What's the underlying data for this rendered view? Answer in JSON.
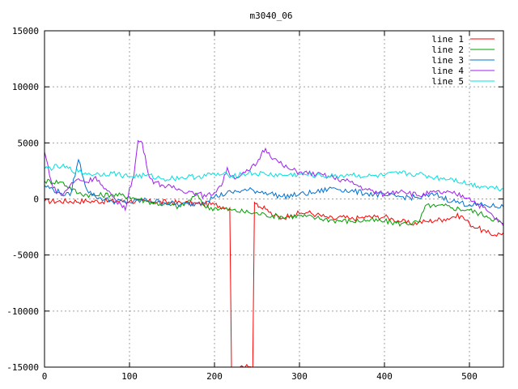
{
  "chart_data": {
    "type": "line",
    "title": "m3040_06",
    "xlabel": "",
    "ylabel": "",
    "xlim": [
      0,
      540
    ],
    "ylim": [
      -15000,
      15000
    ],
    "xticks": [
      0,
      100,
      200,
      300,
      400,
      500
    ],
    "yticks": [
      -15000,
      -10000,
      -5000,
      0,
      5000,
      10000,
      15000
    ],
    "grid": true,
    "legend_position": "top-right",
    "series": [
      {
        "name": "line 1",
        "color": "#ff0000",
        "x": [
          0,
          50,
          100,
          150,
          200,
          210,
          218,
          220,
          222,
          230,
          240,
          245,
          247,
          250,
          255,
          260,
          270,
          280,
          290,
          300,
          310,
          320,
          330,
          340,
          350,
          360,
          370,
          380,
          390,
          400,
          410,
          420,
          430,
          440,
          450,
          460,
          470,
          480,
          490,
          500,
          510,
          520,
          530,
          540
        ],
        "values": [
          -200,
          -200,
          -200,
          -300,
          -500,
          -700,
          -800,
          -15000,
          -15000,
          -15000,
          -15000,
          -15000,
          -300,
          -400,
          -800,
          -900,
          -1500,
          -1700,
          -1400,
          -1300,
          -1200,
          -1400,
          -1600,
          -1800,
          -1600,
          -1800,
          -1700,
          -1600,
          -1600,
          -1600,
          -1800,
          -2000,
          -2200,
          -2100,
          -2000,
          -1900,
          -1800,
          -1600,
          -1500,
          -2200,
          -2600,
          -3000,
          -3200,
          -3000
        ]
      },
      {
        "name": "line 2",
        "color": "#00a000",
        "x": [
          0,
          20,
          40,
          60,
          80,
          100,
          120,
          140,
          160,
          180,
          190,
          200,
          220,
          240,
          260,
          280,
          300,
          320,
          340,
          360,
          380,
          400,
          420,
          440,
          450,
          460,
          470,
          480,
          500,
          520,
          540
        ],
        "values": [
          1600,
          1500,
          500,
          300,
          400,
          200,
          -200,
          -500,
          -700,
          400,
          -800,
          -800,
          -1000,
          -1200,
          -1400,
          -1600,
          -1500,
          -1700,
          -1900,
          -2000,
          -1900,
          -2000,
          -2200,
          -2100,
          -500,
          -700,
          -600,
          -800,
          -1000,
          -1500,
          -2200
        ]
      },
      {
        "name": "line 3",
        "color": "#0070d0",
        "x": [
          0,
          20,
          30,
          40,
          50,
          60,
          80,
          100,
          120,
          140,
          160,
          180,
          200,
          220,
          240,
          260,
          280,
          300,
          320,
          340,
          360,
          380,
          400,
          420,
          440,
          460,
          480,
          500,
          520,
          540
        ],
        "values": [
          1200,
          500,
          300,
          3500,
          800,
          200,
          -200,
          -300,
          -100,
          -300,
          -500,
          -400,
          200,
          600,
          800,
          600,
          200,
          400,
          600,
          1000,
          700,
          500,
          300,
          200,
          100,
          400,
          -200,
          -500,
          -600,
          -700
        ]
      },
      {
        "name": "line 4",
        "color": "#a020f0",
        "x": [
          0,
          10,
          20,
          30,
          40,
          50,
          60,
          70,
          80,
          90,
          95,
          100,
          105,
          110,
          115,
          120,
          125,
          130,
          140,
          150,
          160,
          170,
          180,
          190,
          200,
          210,
          215,
          220,
          230,
          240,
          250,
          255,
          260,
          270,
          280,
          290,
          300,
          320,
          340,
          360,
          380,
          400,
          420,
          440,
          460,
          480,
          500,
          520,
          540
        ],
        "values": [
          4200,
          1000,
          300,
          1200,
          1800,
          1500,
          2000,
          900,
          200,
          -500,
          -1000,
          1000,
          2000,
          5200,
          5000,
          3000,
          1800,
          1500,
          1200,
          1000,
          800,
          700,
          500,
          200,
          600,
          1500,
          2800,
          2000,
          2000,
          2500,
          3200,
          4000,
          4500,
          3600,
          3000,
          2600,
          2400,
          2200,
          1900,
          1500,
          800,
          400,
          800,
          300,
          600,
          500,
          100,
          -1000,
          -2400
        ]
      },
      {
        "name": "line 5",
        "color": "#00e0e0",
        "x": [
          0,
          20,
          40,
          60,
          80,
          100,
          120,
          140,
          160,
          180,
          200,
          220,
          240,
          260,
          280,
          300,
          320,
          340,
          360,
          380,
          400,
          420,
          440,
          460,
          480,
          500,
          520,
          540
        ],
        "values": [
          2700,
          2900,
          2400,
          2200,
          2300,
          2000,
          2100,
          1800,
          1900,
          2000,
          2200,
          2100,
          2300,
          2200,
          2100,
          2200,
          2100,
          2000,
          2200,
          2000,
          2100,
          2300,
          2200,
          1900,
          1800,
          1300,
          1100,
          900
        ]
      }
    ]
  }
}
